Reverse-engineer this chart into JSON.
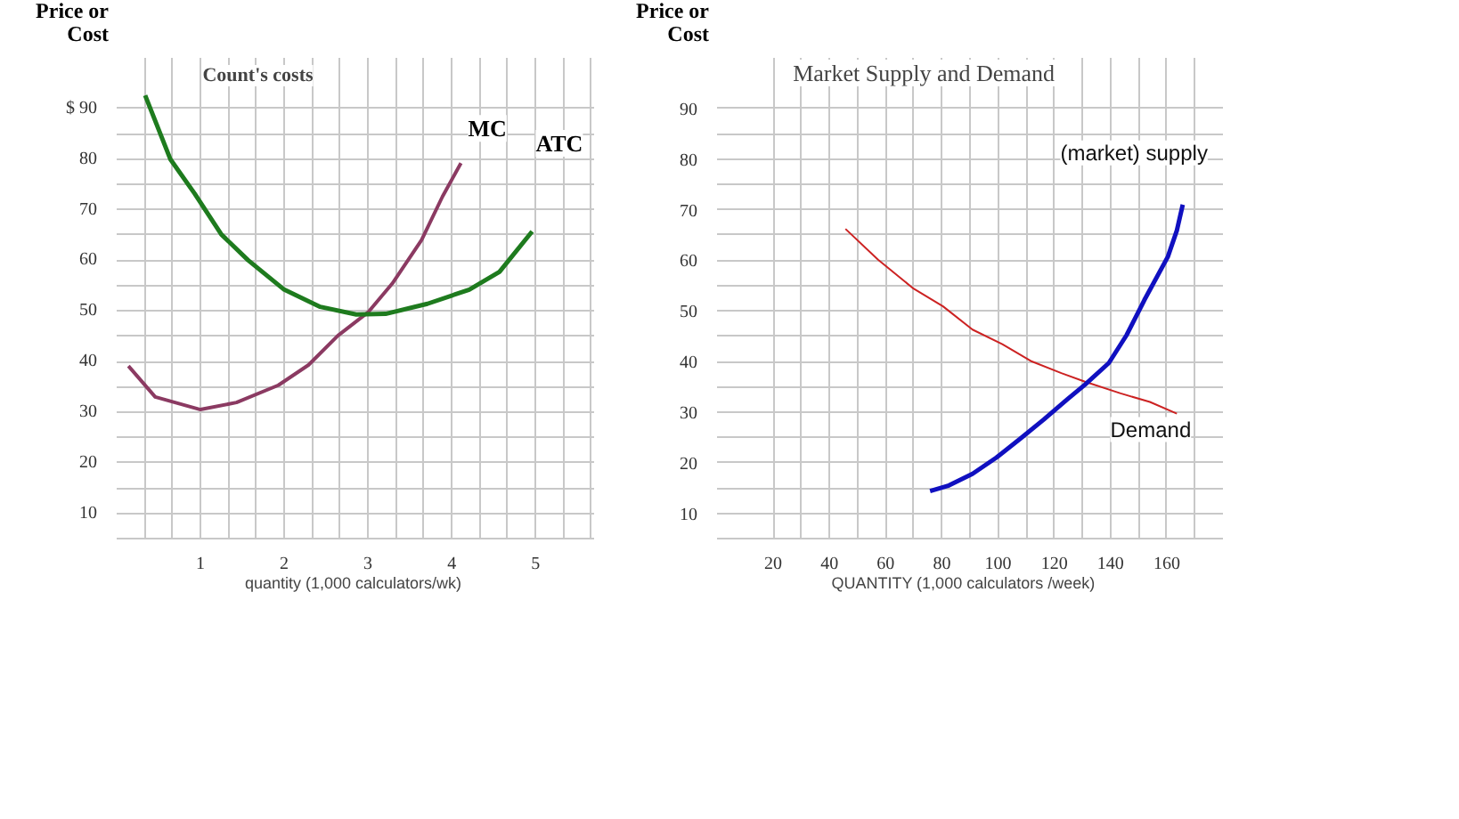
{
  "chart_data": [
    {
      "type": "line",
      "title": "Count's costs",
      "xlabel": "quantity  (1,000 calculators/wk)",
      "ylabel": "Price or Cost",
      "xlim": [
        0,
        5.7
      ],
      "ylim": [
        5,
        100
      ],
      "xticks": [
        {
          "value": 0.333,
          "label": null
        },
        {
          "value": 0.667,
          "label": null
        },
        1,
        {
          "value": 1.333,
          "label": null
        },
        {
          "value": 1.667,
          "label": null
        },
        2,
        {
          "value": 2.333,
          "label": null
        },
        {
          "value": 2.667,
          "label": null
        },
        3,
        {
          "value": 3.333,
          "label": null
        },
        {
          "value": 3.667,
          "label": null
        },
        4,
        {
          "value": 4.333,
          "label": null
        },
        {
          "value": 4.667,
          "label": null
        },
        5,
        {
          "value": 5.333,
          "label": null
        },
        {
          "value": 5.667,
          "label": null
        }
      ],
      "yticks": [
        10,
        {
          "value": 15,
          "label": null
        },
        20,
        {
          "value": 25,
          "label": null
        },
        30,
        {
          "value": 35,
          "label": null
        },
        40,
        {
          "value": 45,
          "label": null
        },
        50,
        {
          "value": 55,
          "label": null
        },
        60,
        {
          "value": 65,
          "label": null
        },
        70,
        {
          "value": 75,
          "label": null
        },
        80,
        {
          "value": 85,
          "label": null
        },
        {
          "value": 90,
          "label": "$ 90"
        }
      ],
      "grid": true,
      "marker": "none",
      "line_style": "solid",
      "series": [
        {
          "name": "MC",
          "color": "#8b3a62",
          "x": [
            0.14,
            0.46,
            1.0,
            1.43,
            1.93,
            2.29,
            2.64,
            3.0,
            3.29,
            3.64,
            3.89,
            4.11
          ],
          "values": [
            39.1,
            33.0,
            30.5,
            31.9,
            35.3,
            39.3,
            45.1,
            49.7,
            55.4,
            64.0,
            72.6,
            79.2
          ]
        },
        {
          "name": "ATC",
          "color": "#1e7b1e",
          "x": [
            0.34,
            0.64,
            0.93,
            1.25,
            1.57,
            2.0,
            2.43,
            2.86,
            3.21,
            3.71,
            4.21,
            4.57,
            4.96
          ],
          "values": [
            92.6,
            80.0,
            73.2,
            65.1,
            60.0,
            54.2,
            50.8,
            49.3,
            49.4,
            51.4,
            54.2,
            57.7,
            65.7
          ]
        }
      ]
    },
    {
      "type": "line",
      "title": "Market Supply and Demand",
      "xlabel": "QUANTITY   (1,000  calculators /week)",
      "ylabel": "Price or Cost",
      "xlim": [
        0,
        180
      ],
      "ylim": [
        5,
        100
      ],
      "xticks": [
        20,
        {
          "value": 30,
          "label": null
        },
        40,
        {
          "value": 50,
          "label": null
        },
        60,
        {
          "value": 70,
          "label": null
        },
        80,
        {
          "value": 90,
          "label": null
        },
        100,
        {
          "value": 110,
          "label": null
        },
        120,
        {
          "value": 130,
          "label": null
        },
        140,
        {
          "value": 150,
          "label": null
        },
        160,
        {
          "value": 170,
          "label": null
        }
      ],
      "yticks": [
        10,
        {
          "value": 15,
          "label": null
        },
        20,
        {
          "value": 25,
          "label": null
        },
        30,
        {
          "value": 35,
          "label": null
        },
        40,
        {
          "value": 45,
          "label": null
        },
        50,
        {
          "value": 55,
          "label": null
        },
        60,
        {
          "value": 65,
          "label": null
        },
        70,
        {
          "value": 75,
          "label": null
        },
        80,
        {
          "value": 85,
          "label": null
        },
        90
      ],
      "grid": true,
      "marker": "none",
      "line_style": "solid",
      "series": [
        {
          "name": "Demand",
          "color": "#cc2222",
          "x": [
            45.7,
            57.3,
            69.9,
            80.4,
            90.9,
            101.5,
            112,
            122.5,
            130.9,
            143.6,
            154,
            163.6
          ],
          "values": [
            66.2,
            60.1,
            54.4,
            50.9,
            46.3,
            43.4,
            40.0,
            37.7,
            36.0,
            33.7,
            32.0,
            29.7
          ]
        },
        {
          "name": "(market) supply",
          "color": "#1010c0",
          "x": [
            75.8,
            82.5,
            90.9,
            99.4,
            107.8,
            116.2,
            124.6,
            130.9,
            139.4,
            145.7,
            152,
            160.4,
            163.6,
            165.7
          ],
          "values": [
            14.4,
            15.5,
            17.8,
            21.0,
            24.7,
            28.5,
            32.5,
            35.4,
            39.7,
            45.2,
            52.1,
            60.7,
            65.9,
            71.0
          ]
        }
      ]
    }
  ]
}
